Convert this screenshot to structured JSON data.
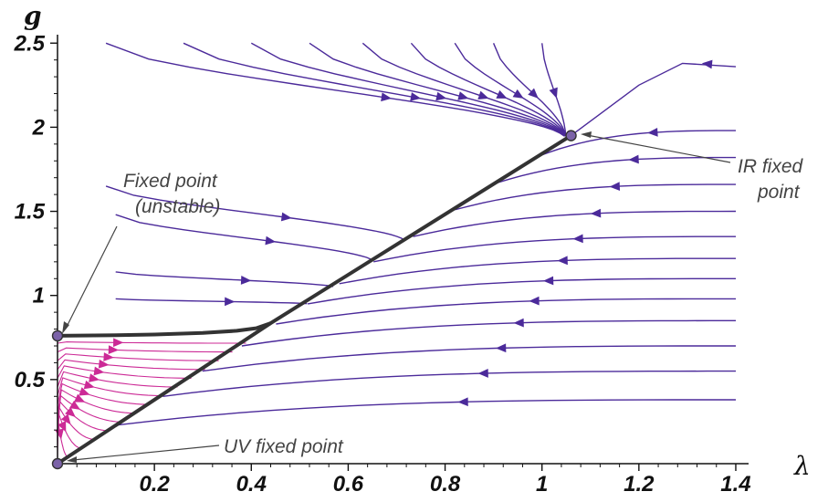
{
  "chart_data": {
    "type": "line",
    "title": "",
    "xlabel": "λ",
    "ylabel": "g",
    "xlim": [
      0,
      1.4
    ],
    "ylim": [
      0,
      2.55
    ],
    "x_ticks": [
      "0.2",
      "0.4",
      "0.6",
      "0.8",
      "1",
      "1.2",
      "1.4"
    ],
    "y_ticks": [
      "0.5",
      "1",
      "1.5",
      "2",
      "2.5"
    ],
    "colors": {
      "flow": "#4b2a9a",
      "flow_pink": "#cc2a96",
      "separatrix": "#333333",
      "fixed_point": "#7b62a8",
      "annotation": "#444444"
    },
    "fixed_points": [
      {
        "name": "UV",
        "x": 0.0,
        "y": 0.0
      },
      {
        "name": "unstable",
        "x": 0.0,
        "y": 0.76
      },
      {
        "name": "IR",
        "x": 1.06,
        "y": 1.95
      }
    ],
    "separatrices": [
      {
        "name": "left-plateau",
        "x": [
          0.0,
          0.1,
          0.2,
          0.3,
          0.37,
          0.41,
          0.44
        ],
        "y": [
          0.76,
          0.763,
          0.768,
          0.777,
          0.79,
          0.805,
          0.835
        ]
      },
      {
        "name": "diagonal",
        "x": [
          0.0,
          0.44,
          1.06
        ],
        "y": [
          0.0,
          0.835,
          1.95
        ]
      }
    ],
    "flow_lines_left_of_diagonal": [
      {
        "x0": 0.1,
        "y0": 2.5,
        "y_end": 1.93
      },
      {
        "x0": 0.26,
        "y0": 2.5,
        "y_end": 1.93
      },
      {
        "x0": 0.4,
        "y0": 2.5,
        "y_end": 1.93
      },
      {
        "x0": 0.52,
        "y0": 2.5,
        "y_end": 1.93
      },
      {
        "x0": 0.63,
        "y0": 2.5,
        "y_end": 1.93
      },
      {
        "x0": 0.73,
        "y0": 2.5,
        "y_end": 1.93
      },
      {
        "x0": 0.82,
        "y0": 2.5,
        "y_end": 1.93
      },
      {
        "x0": 0.9,
        "y0": 2.5,
        "y_end": 1.93
      },
      {
        "x0": 1.0,
        "y0": 2.5,
        "y_end": 1.93
      },
      {
        "x0": 0.1,
        "y0": 1.65,
        "y_end": 1.32
      },
      {
        "x0": 0.12,
        "y0": 1.48,
        "y_end": 1.2
      },
      {
        "x0": 0.12,
        "y0": 1.14,
        "y_end": 1.05
      },
      {
        "x0": 0.12,
        "y0": 0.98,
        "y_end": 0.95
      }
    ],
    "flow_lines_right_of_diagonal": [
      {
        "x_end": 1.4,
        "y_end": 1.98
      },
      {
        "x_end": 1.4,
        "y_end": 1.82
      },
      {
        "x_end": 1.4,
        "y_end": 1.66
      },
      {
        "x_end": 1.4,
        "y_end": 1.5
      },
      {
        "x_end": 1.4,
        "y_end": 1.35
      },
      {
        "x_end": 1.4,
        "y_end": 1.22
      },
      {
        "x_end": 1.4,
        "y_end": 1.1
      },
      {
        "x_end": 1.4,
        "y_end": 0.98
      },
      {
        "x_end": 1.4,
        "y_end": 0.85
      },
      {
        "x_end": 1.4,
        "y_end": 0.7
      },
      {
        "x_end": 1.4,
        "y_end": 0.55
      },
      {
        "x_end": 1.4,
        "y_end": 0.38
      }
    ],
    "flow_lines_pink_below_plateau": {
      "count": 14,
      "x_range": [
        0.0,
        0.44
      ]
    }
  },
  "annotations": {
    "fixed_point_label_1": "Fixed point",
    "fixed_point_label_2": "(unstable)",
    "ir_label_1": "IR fixed",
    "ir_label_2": "point",
    "uv_label": "UV fixed point"
  }
}
